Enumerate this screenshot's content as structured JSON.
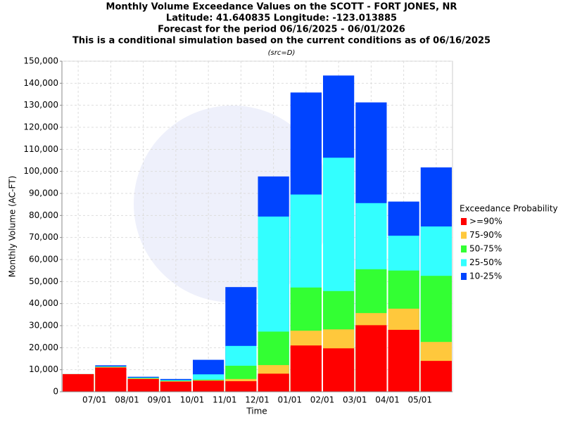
{
  "chart_data": {
    "type": "bar",
    "title": "Monthly Volume Exceedance Values on the SCOTT - FORT JONES, NR",
    "title_lines": [
      "Latitude: 41.640835 Longitude: -123.013885",
      "Forecast for the period 06/16/2025 - 06/01/2026",
      "This is a conditional simulation based on the current conditions as of 06/16/2025"
    ],
    "subtitle": "(src=D)",
    "xlabel": "Time",
    "ylabel": "Monthly Volume (AC-FT)",
    "legend_title": "Exceedance Probability",
    "legend": "right",
    "grid": true,
    "categories": [
      null,
      "07/01",
      "08/01",
      "09/01",
      "10/01",
      "11/01",
      "12/01",
      "01/01",
      "02/01",
      "03/01",
      "04/01",
      "05/01"
    ],
    "ylim": [
      0,
      150000
    ],
    "yticks": [
      0,
      {
        "value": 10000,
        "label": "10,000"
      },
      {
        "value": 20000,
        "label": "20,000"
      },
      {
        "value": 30000,
        "label": "30,000"
      },
      {
        "value": 40000,
        "label": "40,000"
      },
      {
        "value": 50000,
        "label": "50,000"
      },
      {
        "value": 60000,
        "label": "60,000"
      },
      {
        "value": 70000,
        "label": "70,000"
      },
      {
        "value": 80000,
        "label": "80,000"
      },
      {
        "value": 90000,
        "label": "90,000"
      },
      {
        "value": 100000,
        "label": "100,000"
      },
      {
        "value": 110000,
        "label": "110,000"
      },
      {
        "value": 120000,
        "label": "120,000"
      },
      {
        "value": 130000,
        "label": "130,000"
      },
      {
        "value": 140000,
        "label": "140,000"
      },
      {
        "value": 150000,
        "label": "150,000"
      }
    ],
    "series": [
      {
        "name": ">=90%",
        "color": "#ff0000",
        "values": [
          8000,
          11000,
          5800,
          4600,
          5000,
          4800,
          8200,
          21000,
          19700,
          30200,
          28100,
          14000
        ]
      },
      {
        "name": "75-90%",
        "color": "#ffc83c",
        "values": [
          8000,
          11200,
          6000,
          4800,
          5200,
          5800,
          12100,
          27700,
          28300,
          35700,
          37700,
          22600
        ]
      },
      {
        "name": "50-75%",
        "color": "#33ff33",
        "values": [
          8000,
          11300,
          6200,
          5000,
          5500,
          11800,
          27300,
          47300,
          45700,
          55600,
          55000,
          52600
        ]
      },
      {
        "name": "25-50%",
        "color": "#33ffff",
        "values": [
          8000,
          11500,
          6400,
          5300,
          7900,
          20800,
          79500,
          89500,
          106200,
          85600,
          70800,
          75000
        ]
      },
      {
        "name": "10-25%",
        "color": "#0044ff",
        "values": [
          8000,
          12000,
          6800,
          5800,
          14500,
          47500,
          97700,
          135800,
          143500,
          131300,
          86300,
          101800
        ]
      }
    ]
  }
}
